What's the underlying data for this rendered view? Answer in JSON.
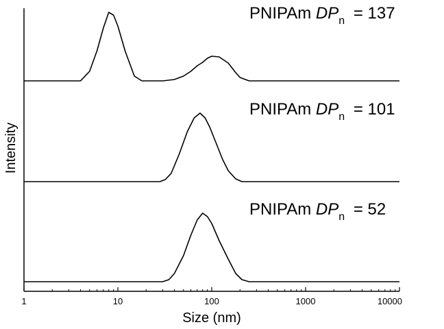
{
  "chart_data": {
    "type": "line",
    "xlabel": "Size (nm)",
    "ylabel": "Intensity",
    "xscale": "log",
    "xlim": [
      1,
      10000
    ],
    "x_ticks": [
      1,
      10,
      100,
      1000,
      10000
    ],
    "x_tick_labels": [
      "1",
      "10",
      "100",
      "1000",
      "10000"
    ],
    "grid": false,
    "legend": "none",
    "layout": "stacked-offset",
    "series": [
      {
        "label_prefix": "PNIPAm ",
        "label_dp": "DP",
        "label_sub": "n",
        "label_value": " = 137",
        "x": [
          1,
          4,
          5,
          6,
          7,
          8,
          9,
          10,
          12,
          15,
          18,
          20,
          30,
          40,
          50,
          60,
          70,
          80,
          90,
          100,
          120,
          150,
          180,
          200,
          250,
          10000
        ],
        "y": [
          0,
          0,
          0.14,
          0.44,
          0.77,
          1.0,
          0.96,
          0.8,
          0.43,
          0.07,
          0,
          0,
          0,
          0.02,
          0.07,
          0.14,
          0.22,
          0.27,
          0.33,
          0.36,
          0.35,
          0.26,
          0.12,
          0.05,
          0,
          0
        ]
      },
      {
        "label_prefix": "PNIPAm ",
        "label_dp": "DP",
        "label_sub": "n",
        "label_value": " = 101",
        "x": [
          1,
          28,
          32,
          37,
          45,
          55,
          65,
          75,
          85,
          95,
          110,
          130,
          150,
          180,
          210,
          10000
        ],
        "y": [
          0,
          0,
          0.03,
          0.12,
          0.4,
          0.73,
          0.93,
          1.0,
          0.93,
          0.8,
          0.58,
          0.33,
          0.16,
          0.04,
          0,
          0
        ]
      },
      {
        "label_prefix": "PNIPAm ",
        "label_dp": "DP",
        "label_sub": "n",
        "label_value": " = 52",
        "x": [
          1,
          30,
          35,
          40,
          50,
          60,
          70,
          80,
          90,
          100,
          120,
          150,
          180,
          210,
          250,
          10000
        ],
        "y": [
          0,
          0,
          0.03,
          0.12,
          0.38,
          0.68,
          0.9,
          1.0,
          0.95,
          0.85,
          0.6,
          0.33,
          0.12,
          0.03,
          0,
          0
        ]
      }
    ]
  }
}
